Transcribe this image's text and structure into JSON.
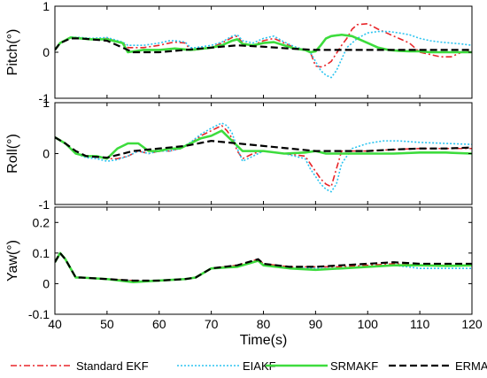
{
  "chart_data": {
    "type": "line",
    "xlabel": "Time(s)",
    "x_ticks": [
      40,
      50,
      60,
      70,
      80,
      90,
      100,
      110,
      120
    ],
    "xlim": [
      40,
      120
    ],
    "legend_position": "bottom",
    "series_styles": [
      {
        "name": "Standard EKF",
        "color": "#e8262a",
        "dash": "7,3,2,3",
        "width": 1.6
      },
      {
        "name": "EIAKF",
        "color": "#2bc4f0",
        "dash": "2,2",
        "width": 1.6
      },
      {
        "name": "SRMAKF",
        "color": "#3ddc3d",
        "dash": "",
        "width": 2.6
      },
      {
        "name": "ERMAKF",
        "color": "#000000",
        "dash": "8,4",
        "width": 2.2
      }
    ],
    "panels": [
      {
        "ylabel": "Pitch(°)",
        "ylim": [
          -1,
          1
        ],
        "y_ticks": [
          -1,
          0,
          1
        ],
        "y_tick_labels": [
          "-1",
          "0",
          "1"
        ],
        "series": [
          {
            "name": "Standard EKF",
            "x": [
              40,
              41,
              43,
              45,
              47,
              50,
              53,
              54,
              57,
              60,
              62,
              63,
              65,
              66,
              67,
              70,
              72,
              74,
              75,
              76,
              78,
              80,
              82,
              84,
              86,
              88,
              89,
              90,
              91,
              92,
              93,
              95,
              96,
              97,
              98,
              100,
              102,
              104,
              106,
              108,
              110,
              112,
              114,
              116,
              118,
              120
            ],
            "y": [
              0.05,
              0.2,
              0.33,
              0.3,
              0.28,
              0.3,
              0.2,
              0.1,
              0.1,
              0.15,
              0.2,
              0.22,
              0.2,
              0.05,
              0.05,
              0.1,
              0.2,
              0.32,
              0.35,
              0.2,
              0.15,
              0.25,
              0.3,
              0.2,
              0.1,
              0.05,
              0.0,
              -0.3,
              -0.32,
              -0.28,
              -0.2,
              0.15,
              0.3,
              0.5,
              0.6,
              0.62,
              0.5,
              0.4,
              0.3,
              0.2,
              0.0,
              -0.05,
              -0.1,
              -0.1,
              0.0,
              0.02
            ]
          },
          {
            "name": "EIAKF",
            "x": [
              40,
              41,
              43,
              45,
              47,
              50,
              53,
              54,
              57,
              60,
              62,
              63,
              65,
              66,
              67,
              70,
              72,
              74,
              75,
              76,
              78,
              80,
              82,
              84,
              86,
              88,
              89,
              90,
              91,
              92,
              93,
              94,
              95,
              96,
              98,
              100,
              102,
              104,
              106,
              108,
              110,
              112,
              114,
              116,
              118,
              120
            ],
            "y": [
              0.05,
              0.2,
              0.33,
              0.32,
              0.3,
              0.32,
              0.22,
              0.15,
              0.15,
              0.2,
              0.25,
              0.25,
              0.22,
              0.1,
              0.1,
              0.15,
              0.22,
              0.35,
              0.38,
              0.25,
              0.2,
              0.3,
              0.35,
              0.22,
              0.12,
              0.05,
              0.0,
              -0.2,
              -0.4,
              -0.5,
              -0.55,
              -0.4,
              -0.15,
              0.1,
              0.3,
              0.42,
              0.45,
              0.45,
              0.42,
              0.38,
              0.3,
              0.25,
              0.22,
              0.2,
              0.18,
              0.15
            ]
          },
          {
            "name": "SRMAKF",
            "x": [
              40,
              41,
              43,
              45,
              47,
              50,
              53,
              54,
              57,
              60,
              63,
              66,
              70,
              72,
              74,
              75,
              76,
              78,
              80,
              82,
              84,
              86,
              88,
              89,
              90,
              91,
              92,
              93,
              95,
              97,
              98,
              100,
              102,
              104,
              106,
              108,
              110,
              112,
              114,
              116,
              118,
              120
            ],
            "y": [
              0.05,
              0.2,
              0.32,
              0.3,
              0.28,
              0.28,
              0.2,
              0.0,
              0.05,
              0.05,
              0.08,
              0.05,
              0.1,
              0.15,
              0.25,
              0.28,
              0.18,
              0.15,
              0.2,
              0.22,
              0.15,
              0.08,
              0.05,
              0.0,
              0.02,
              0.15,
              0.3,
              0.35,
              0.38,
              0.35,
              0.3,
              0.2,
              0.1,
              0.05,
              0.03,
              0.02,
              0.02,
              0.0,
              0.0,
              0.0,
              0.0,
              0.0
            ]
          },
          {
            "name": "ERMAKF",
            "x": [
              40,
              41,
              43,
              45,
              50,
              53,
              55,
              60,
              65,
              70,
              75,
              80,
              85,
              90,
              95,
              100,
              105,
              110,
              115,
              120
            ],
            "y": [
              0.05,
              0.2,
              0.3,
              0.3,
              0.25,
              0.1,
              0.0,
              0.0,
              0.05,
              0.1,
              0.15,
              0.12,
              0.08,
              0.05,
              0.05,
              0.05,
              0.05,
              0.05,
              0.05,
              0.05
            ]
          }
        ]
      },
      {
        "ylabel": "Roll(°)",
        "ylim": [
          -1,
          1
        ],
        "y_ticks": [
          -1,
          0,
          1
        ],
        "y_tick_labels": [
          "-1",
          "0",
          "1"
        ],
        "series": [
          {
            "name": "Standard EKF",
            "x": [
              40,
              42,
              44,
              46,
              48,
              50,
              52,
              54,
              56,
              58,
              60,
              62,
              64,
              66,
              68,
              70,
              72,
              73,
              74,
              75,
              76,
              78,
              80,
              84,
              88,
              89,
              90,
              91,
              92,
              93,
              94,
              95,
              97,
              100,
              105,
              110,
              115,
              120
            ],
            "y": [
              0.32,
              0.2,
              0.0,
              -0.05,
              -0.05,
              -0.1,
              -0.1,
              -0.05,
              0.05,
              0.0,
              0.05,
              0.05,
              0.1,
              0.2,
              0.35,
              0.45,
              0.55,
              0.45,
              0.3,
              0.05,
              -0.1,
              0.0,
              0.05,
              0.0,
              -0.05,
              -0.2,
              -0.35,
              -0.5,
              -0.6,
              -0.65,
              -0.3,
              0.05,
              0.05,
              0.05,
              0.08,
              0.1,
              0.1,
              0.1
            ]
          },
          {
            "name": "EIAKF",
            "x": [
              40,
              42,
              44,
              46,
              48,
              50,
              52,
              54,
              56,
              58,
              60,
              62,
              64,
              66,
              68,
              70,
              72,
              73,
              74,
              75,
              76,
              78,
              80,
              84,
              88,
              89,
              90,
              91,
              92,
              93,
              94,
              95,
              97,
              100,
              103,
              106,
              110,
              115,
              120
            ],
            "y": [
              0.32,
              0.2,
              0.0,
              -0.08,
              -0.1,
              -0.15,
              -0.12,
              -0.05,
              0.05,
              0.0,
              0.05,
              0.05,
              0.1,
              0.22,
              0.38,
              0.5,
              0.6,
              0.55,
              0.4,
              0.1,
              -0.15,
              -0.05,
              0.05,
              0.0,
              -0.1,
              -0.3,
              -0.45,
              -0.6,
              -0.7,
              -0.75,
              -0.6,
              -0.2,
              0.1,
              0.2,
              0.25,
              0.25,
              0.22,
              0.2,
              0.18
            ]
          },
          {
            "name": "SRMAKF",
            "x": [
              40,
              42,
              44,
              46,
              48,
              50,
              52,
              54,
              56,
              58,
              60,
              62,
              64,
              66,
              68,
              70,
              72,
              74,
              76,
              78,
              80,
              84,
              88,
              90,
              92,
              95,
              100,
              105,
              110,
              115,
              120
            ],
            "y": [
              0.32,
              0.2,
              0.0,
              -0.05,
              -0.05,
              -0.1,
              0.1,
              0.2,
              0.2,
              0.05,
              0.05,
              0.1,
              0.1,
              0.2,
              0.3,
              0.35,
              0.45,
              0.25,
              0.05,
              0.05,
              0.05,
              0.0,
              0.02,
              0.05,
              0.0,
              0.0,
              0.0,
              0.0,
              0.02,
              0.02,
              0.0
            ]
          },
          {
            "name": "ERMAKF",
            "x": [
              40,
              42,
              44,
              46,
              50,
              55,
              60,
              65,
              70,
              75,
              80,
              85,
              90,
              95,
              100,
              105,
              110,
              115,
              120
            ],
            "y": [
              0.32,
              0.2,
              0.05,
              -0.05,
              -0.08,
              0.05,
              0.1,
              0.15,
              0.25,
              0.2,
              0.15,
              0.1,
              0.05,
              0.05,
              0.05,
              0.08,
              0.1,
              0.1,
              0.12
            ]
          }
        ]
      },
      {
        "ylabel": "Yaw(°)",
        "ylim": [
          -0.1,
          0.25
        ],
        "y_ticks": [
          -0.1,
          0,
          0.1,
          0.2
        ],
        "y_tick_labels": [
          "-0.1",
          "0",
          "0.1",
          "0.2"
        ],
        "series": [
          {
            "name": "Standard EKF",
            "x": [
              40,
              41,
              42,
              43,
              44,
              45,
              50,
              55,
              60,
              65,
              67,
              70,
              75,
              79,
              80,
              85,
              90,
              95,
              100,
              105,
              110,
              115,
              120
            ],
            "y": [
              0.07,
              0.1,
              0.08,
              0.05,
              0.02,
              0.02,
              0.015,
              0.01,
              0.01,
              0.015,
              0.02,
              0.05,
              0.06,
              0.08,
              0.065,
              0.055,
              0.055,
              0.055,
              0.06,
              0.065,
              0.06,
              0.06,
              0.06
            ]
          },
          {
            "name": "EIAKF",
            "x": [
              40,
              41,
              42,
              43,
              44,
              45,
              50,
              55,
              60,
              65,
              67,
              70,
              75,
              79,
              80,
              85,
              90,
              95,
              100,
              105,
              110,
              115,
              120
            ],
            "y": [
              0.07,
              0.1,
              0.08,
              0.05,
              0.02,
              0.02,
              0.015,
              0.008,
              0.01,
              0.015,
              0.02,
              0.05,
              0.055,
              0.075,
              0.06,
              0.05,
              0.05,
              0.05,
              0.055,
              0.06,
              0.05,
              0.05,
              0.05
            ]
          },
          {
            "name": "SRMAKF",
            "x": [
              40,
              41,
              42,
              43,
              44,
              45,
              50,
              55,
              60,
              65,
              67,
              70,
              75,
              79,
              80,
              85,
              90,
              95,
              100,
              105,
              110,
              115,
              120
            ],
            "y": [
              0.07,
              0.1,
              0.08,
              0.05,
              0.02,
              0.02,
              0.015,
              0.005,
              0.01,
              0.015,
              0.02,
              0.05,
              0.055,
              0.075,
              0.06,
              0.05,
              0.045,
              0.05,
              0.055,
              0.06,
              0.06,
              0.058,
              0.06
            ]
          },
          {
            "name": "ERMAKF",
            "x": [
              40,
              41,
              42,
              43,
              44,
              45,
              50,
              55,
              60,
              65,
              67,
              70,
              75,
              79,
              80,
              85,
              90,
              95,
              100,
              105,
              110,
              115,
              120
            ],
            "y": [
              0.07,
              0.1,
              0.08,
              0.05,
              0.02,
              0.02,
              0.015,
              0.01,
              0.01,
              0.015,
              0.02,
              0.05,
              0.06,
              0.08,
              0.065,
              0.055,
              0.055,
              0.06,
              0.065,
              0.07,
              0.065,
              0.065,
              0.065
            ]
          }
        ]
      }
    ]
  }
}
